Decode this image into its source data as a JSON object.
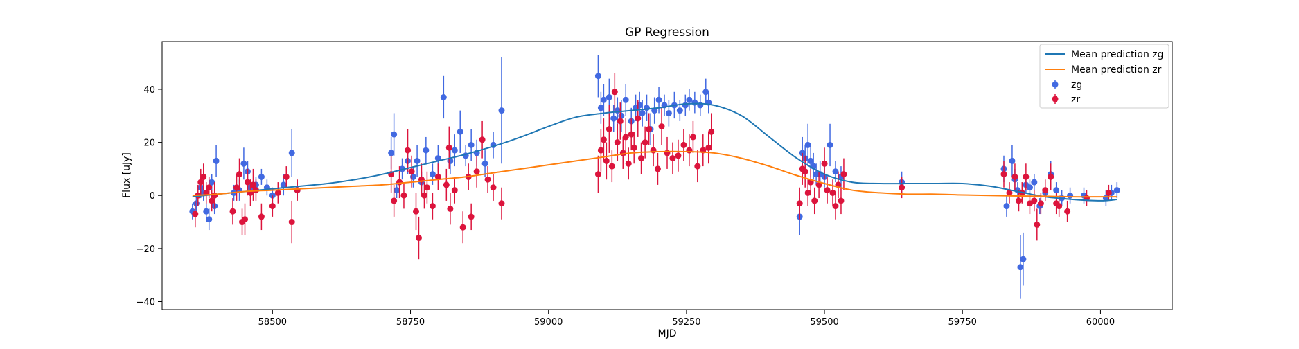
{
  "chart_data": {
    "type": "scatter",
    "title": "GP Regression",
    "xlabel": "MJD",
    "ylabel": "Flux [uJy]",
    "xlim": [
      58300,
      60130
    ],
    "ylim": [
      -43,
      58
    ],
    "x_ticks": [
      58500,
      58750,
      59000,
      59250,
      59500,
      59750,
      60000
    ],
    "y_ticks": [
      -40,
      -20,
      0,
      20,
      40
    ],
    "grid": false,
    "legend_position": "top-right",
    "legend": [
      "Mean prediction zg",
      "Mean prediction zr",
      "zg",
      "zr"
    ],
    "lines": [
      {
        "name": "Mean prediction zg",
        "color": "#1f77b4",
        "x": [
          58355,
          58400,
          58450,
          58500,
          58550,
          58600,
          58650,
          58700,
          58750,
          58800,
          58850,
          58900,
          58950,
          59000,
          59050,
          59100,
          59150,
          59200,
          59250,
          59300,
          59350,
          59400,
          59450,
          59500,
          59550,
          59600,
          59650,
          59700,
          59750,
          59800,
          59850,
          59900,
          59950,
          60000,
          60030
        ],
        "y": [
          -0.5,
          0.5,
          1.5,
          2.5,
          3.5,
          4.5,
          6.0,
          8.0,
          10.5,
          13.0,
          15.5,
          18.5,
          22.0,
          26.0,
          29.5,
          31.0,
          32.0,
          33.0,
          34.5,
          34.0,
          30.0,
          22.0,
          14.0,
          8.0,
          5.0,
          4.5,
          4.5,
          4.5,
          4.5,
          3.5,
          1.5,
          -0.5,
          -1.5,
          -2.0,
          -1.5
        ]
      },
      {
        "name": "Mean prediction zr",
        "color": "#ff7f0e",
        "x": [
          58355,
          58400,
          58450,
          58500,
          58550,
          58600,
          58650,
          58700,
          58750,
          58800,
          58850,
          58900,
          58950,
          59000,
          59050,
          59100,
          59150,
          59200,
          59250,
          59300,
          59350,
          59400,
          59450,
          59500,
          59550,
          59600,
          59650,
          59700,
          59750,
          59800,
          59850,
          59900,
          59950,
          60000,
          60030
        ],
        "y": [
          0.0,
          0.5,
          1.5,
          2.0,
          2.5,
          3.0,
          3.5,
          4.0,
          5.0,
          6.0,
          7.0,
          8.5,
          10.0,
          11.5,
          13.0,
          14.5,
          16.0,
          16.5,
          16.5,
          16.0,
          14.0,
          11.0,
          7.5,
          4.5,
          2.0,
          1.0,
          0.5,
          0.5,
          0.2,
          0.0,
          -0.2,
          -0.3,
          -0.5,
          -0.5,
          -0.5
        ]
      }
    ],
    "series": [
      {
        "name": "zg",
        "color": "#4169e1",
        "points": [
          [
            58355,
            -6,
            3
          ],
          [
            58362,
            -3,
            3
          ],
          [
            58370,
            3,
            4
          ],
          [
            58375,
            1,
            3
          ],
          [
            58380,
            -6,
            4
          ],
          [
            58385,
            -9,
            4
          ],
          [
            58390,
            5,
            3
          ],
          [
            58395,
            -4,
            3
          ],
          [
            58398,
            13,
            6
          ],
          [
            58430,
            1,
            3
          ],
          [
            58440,
            2,
            4
          ],
          [
            58448,
            12,
            6
          ],
          [
            58455,
            9,
            4
          ],
          [
            58460,
            3,
            3
          ],
          [
            58470,
            4,
            3
          ],
          [
            58480,
            7,
            3
          ],
          [
            58490,
            3,
            3
          ],
          [
            58500,
            0,
            3
          ],
          [
            58520,
            4,
            4
          ],
          [
            58535,
            16,
            9
          ],
          [
            58545,
            2,
            3
          ],
          [
            58715,
            16,
            6
          ],
          [
            58720,
            23,
            8
          ],
          [
            58725,
            2,
            3
          ],
          [
            58735,
            10,
            4
          ],
          [
            58745,
            13,
            5
          ],
          [
            58755,
            7,
            4
          ],
          [
            58762,
            13,
            6
          ],
          [
            58770,
            5,
            4
          ],
          [
            58778,
            17,
            5
          ],
          [
            58790,
            8,
            4
          ],
          [
            58800,
            14,
            5
          ],
          [
            58810,
            37,
            8
          ],
          [
            58822,
            13,
            5
          ],
          [
            58830,
            17,
            6
          ],
          [
            58840,
            24,
            8
          ],
          [
            58850,
            15,
            4
          ],
          [
            58860,
            19,
            6
          ],
          [
            58870,
            16,
            5
          ],
          [
            58885,
            12,
            5
          ],
          [
            58900,
            19,
            5
          ],
          [
            58915,
            32,
            20
          ],
          [
            59090,
            45,
            8
          ],
          [
            59095,
            33,
            6
          ],
          [
            59100,
            36,
            6
          ],
          [
            59110,
            37,
            7
          ],
          [
            59118,
            29,
            5
          ],
          [
            59125,
            32,
            5
          ],
          [
            59132,
            30,
            6
          ],
          [
            59140,
            36,
            6
          ],
          [
            59150,
            28,
            5
          ],
          [
            59158,
            33,
            5
          ],
          [
            59165,
            34,
            5
          ],
          [
            59170,
            31,
            5
          ],
          [
            59178,
            33,
            5
          ],
          [
            59185,
            25,
            6
          ],
          [
            59192,
            32,
            5
          ],
          [
            59200,
            36,
            5
          ],
          [
            59210,
            34,
            4
          ],
          [
            59218,
            31,
            5
          ],
          [
            59228,
            34,
            5
          ],
          [
            59238,
            32,
            4
          ],
          [
            59248,
            34,
            4
          ],
          [
            59255,
            36,
            4
          ],
          [
            59265,
            35,
            4
          ],
          [
            59275,
            34,
            4
          ],
          [
            59285,
            39,
            5
          ],
          [
            59290,
            35,
            4
          ],
          [
            59455,
            -8,
            7
          ],
          [
            59460,
            16,
            6
          ],
          [
            59465,
            14,
            5
          ],
          [
            59470,
            19,
            8
          ],
          [
            59475,
            13,
            6
          ],
          [
            59480,
            11,
            5
          ],
          [
            59485,
            8,
            4
          ],
          [
            59492,
            8,
            5
          ],
          [
            59500,
            7,
            4
          ],
          [
            59510,
            19,
            8
          ],
          [
            59520,
            9,
            4
          ],
          [
            59530,
            7,
            4
          ],
          [
            59640,
            5,
            4
          ],
          [
            59825,
            10,
            5
          ],
          [
            59830,
            -4,
            4
          ],
          [
            59840,
            13,
            6
          ],
          [
            59845,
            6,
            4
          ],
          [
            59850,
            2,
            3
          ],
          [
            59855,
            -27,
            12
          ],
          [
            59860,
            -24,
            10
          ],
          [
            59865,
            4,
            3
          ],
          [
            59872,
            3,
            3
          ],
          [
            59880,
            5,
            3
          ],
          [
            59890,
            -4,
            3
          ],
          [
            59900,
            1,
            3
          ],
          [
            59910,
            8,
            5
          ],
          [
            59920,
            2,
            3
          ],
          [
            59930,
            -1,
            3
          ],
          [
            59945,
            0,
            3
          ],
          [
            59970,
            0,
            3
          ],
          [
            60010,
            -1,
            3
          ],
          [
            60020,
            1,
            3
          ],
          [
            60030,
            2,
            3
          ]
        ]
      },
      {
        "name": "zr",
        "color": "#dc143c",
        "points": [
          [
            58360,
            -7,
            5
          ],
          [
            58365,
            0,
            4
          ],
          [
            58370,
            5,
            5
          ],
          [
            58375,
            7,
            5
          ],
          [
            58380,
            1,
            4
          ],
          [
            58385,
            3,
            4
          ],
          [
            58390,
            -2,
            4
          ],
          [
            58395,
            0,
            5
          ],
          [
            58428,
            -6,
            5
          ],
          [
            58435,
            3,
            5
          ],
          [
            58440,
            8,
            6
          ],
          [
            58445,
            -10,
            5
          ],
          [
            58450,
            -9,
            6
          ],
          [
            58455,
            5,
            5
          ],
          [
            58460,
            1,
            5
          ],
          [
            58465,
            4,
            6
          ],
          [
            58470,
            2,
            4
          ],
          [
            58480,
            -8,
            5
          ],
          [
            58500,
            -4,
            4
          ],
          [
            58510,
            1,
            4
          ],
          [
            58525,
            7,
            4
          ],
          [
            58535,
            -10,
            8
          ],
          [
            58545,
            2,
            4
          ],
          [
            58715,
            8,
            7
          ],
          [
            58720,
            -2,
            6
          ],
          [
            58730,
            5,
            6
          ],
          [
            58738,
            0,
            5
          ],
          [
            58745,
            17,
            8
          ],
          [
            58752,
            9,
            6
          ],
          [
            58760,
            -6,
            7
          ],
          [
            58765,
            -16,
            8
          ],
          [
            58770,
            6,
            6
          ],
          [
            58775,
            0,
            5
          ],
          [
            58780,
            3,
            6
          ],
          [
            58790,
            -4,
            5
          ],
          [
            58800,
            7,
            5
          ],
          [
            58815,
            4,
            6
          ],
          [
            58820,
            18,
            8
          ],
          [
            58822,
            -5,
            6
          ],
          [
            58830,
            2,
            5
          ],
          [
            58845,
            -12,
            6
          ],
          [
            58855,
            7,
            5
          ],
          [
            58860,
            -8,
            5
          ],
          [
            58870,
            9,
            6
          ],
          [
            58880,
            21,
            7
          ],
          [
            58890,
            6,
            5
          ],
          [
            58900,
            3,
            5
          ],
          [
            58915,
            -3,
            6
          ],
          [
            59090,
            8,
            7
          ],
          [
            59095,
            17,
            8
          ],
          [
            59100,
            21,
            8
          ],
          [
            59105,
            13,
            7
          ],
          [
            59110,
            25,
            9
          ],
          [
            59115,
            11,
            6
          ],
          [
            59120,
            39,
            7
          ],
          [
            59125,
            20,
            7
          ],
          [
            59130,
            28,
            7
          ],
          [
            59135,
            16,
            6
          ],
          [
            59140,
            22,
            7
          ],
          [
            59145,
            12,
            6
          ],
          [
            59150,
            23,
            6
          ],
          [
            59155,
            18,
            6
          ],
          [
            59162,
            29,
            7
          ],
          [
            59168,
            14,
            6
          ],
          [
            59175,
            20,
            6
          ],
          [
            59182,
            25,
            6
          ],
          [
            59190,
            17,
            6
          ],
          [
            59198,
            10,
            6
          ],
          [
            59205,
            26,
            7
          ],
          [
            59215,
            16,
            6
          ],
          [
            59225,
            14,
            6
          ],
          [
            59235,
            15,
            6
          ],
          [
            59245,
            19,
            6
          ],
          [
            59255,
            17,
            6
          ],
          [
            59262,
            22,
            6
          ],
          [
            59270,
            11,
            6
          ],
          [
            59280,
            17,
            6
          ],
          [
            59290,
            18,
            6
          ],
          [
            59295,
            24,
            7
          ],
          [
            59455,
            -3,
            6
          ],
          [
            59460,
            10,
            6
          ],
          [
            59465,
            9,
            6
          ],
          [
            59470,
            1,
            5
          ],
          [
            59475,
            5,
            5
          ],
          [
            59482,
            -2,
            5
          ],
          [
            59490,
            4,
            5
          ],
          [
            59500,
            12,
            6
          ],
          [
            59505,
            2,
            5
          ],
          [
            59515,
            1,
            5
          ],
          [
            59520,
            -4,
            5
          ],
          [
            59525,
            4,
            5
          ],
          [
            59530,
            -2,
            5
          ],
          [
            59535,
            8,
            6
          ],
          [
            59640,
            3,
            4
          ],
          [
            59825,
            8,
            5
          ],
          [
            59835,
            1,
            4
          ],
          [
            59845,
            7,
            5
          ],
          [
            59852,
            -2,
            4
          ],
          [
            59858,
            1,
            4
          ],
          [
            59865,
            7,
            5
          ],
          [
            59872,
            -3,
            4
          ],
          [
            59880,
            -2,
            4
          ],
          [
            59885,
            -11,
            6
          ],
          [
            59892,
            -3,
            4
          ],
          [
            59900,
            2,
            4
          ],
          [
            59910,
            7,
            5
          ],
          [
            59920,
            -3,
            4
          ],
          [
            59925,
            -4,
            4
          ],
          [
            59940,
            -6,
            4
          ],
          [
            59975,
            -1,
            3
          ],
          [
            60015,
            1,
            3
          ]
        ]
      }
    ]
  }
}
